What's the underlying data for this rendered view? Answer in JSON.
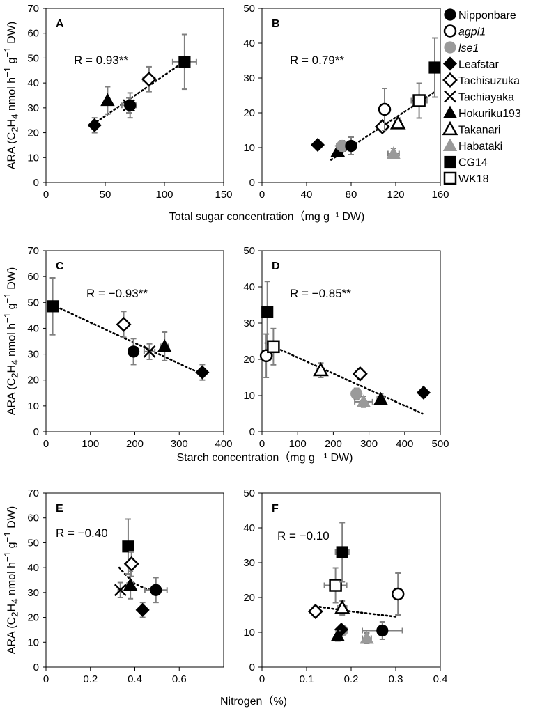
{
  "figure": {
    "y_axis_title": "ARA (C<sub>2</sub>H<sub>4</sub> nmol h<sup>−1</sup> g<sup>−1</sup> DW)",
    "row_titles": {
      "row1": "Total sugar concentration（mg g⁻¹ DW)",
      "row2": "Starch concentration（mg g ⁻¹ DW)",
      "row3": "Nitrogen（%)"
    }
  },
  "legend": [
    {
      "label": "Nipponbare",
      "marker": "circle-filled",
      "italic": false
    },
    {
      "label": "agpl1",
      "marker": "circle-open",
      "italic": true
    },
    {
      "label": "lse1",
      "marker": "circle-gray",
      "italic": true
    },
    {
      "label": "Leafstar",
      "marker": "diamond-filled",
      "italic": false
    },
    {
      "label": "Tachisuzuka",
      "marker": "diamond-open",
      "italic": false
    },
    {
      "label": "Tachiayaka",
      "marker": "cross",
      "italic": false
    },
    {
      "label": "Hokuriku193",
      "marker": "triangle-filled",
      "italic": false
    },
    {
      "label": "Takanari",
      "marker": "triangle-open",
      "italic": false
    },
    {
      "label": "Habataki",
      "marker": "triangle-gray",
      "italic": false
    },
    {
      "label": "CG14",
      "marker": "square-filled",
      "italic": false
    },
    {
      "label": "WK18",
      "marker": "square-open",
      "italic": false
    }
  ],
  "colors": {
    "black": "#000000",
    "gray": "#9a9a9a",
    "errorbar": "#808080"
  },
  "chart_data": [
    {
      "id": "A",
      "type": "scatter",
      "xlim": [
        0,
        150
      ],
      "xticks": [
        0,
        50,
        100,
        150
      ],
      "ylim": [
        0,
        70
      ],
      "yticks": [
        0,
        10,
        20,
        30,
        40,
        50,
        60,
        70
      ],
      "annotation": "R = 0.93**",
      "trendline": [
        [
          40,
          23.5
        ],
        [
          118,
          49
        ]
      ],
      "points": [
        {
          "m": "Leafstar",
          "x": 41,
          "y": 23,
          "xe": 0,
          "ye": 3
        },
        {
          "m": "Hokuriku193",
          "x": 52,
          "y": 33,
          "xe": 0,
          "ye": 5.5
        },
        {
          "m": "Tachiayaka",
          "x": 70,
          "y": 31,
          "xe": 6,
          "ye": 3
        },
        {
          "m": "Nipponbare",
          "x": 71,
          "y": 31,
          "xe": 4,
          "ye": 5
        },
        {
          "m": "Tachisuzuka",
          "x": 87,
          "y": 41.5,
          "xe": 5,
          "ye": 5
        },
        {
          "m": "CG14",
          "x": 117,
          "y": 48.5,
          "xe": 10,
          "ye": 11
        }
      ]
    },
    {
      "id": "B",
      "type": "scatter",
      "xlim": [
        0,
        160
      ],
      "xticks": [
        0,
        40,
        80,
        120,
        160
      ],
      "ylim": [
        0,
        50
      ],
      "yticks": [
        0,
        10,
        20,
        30,
        40,
        50
      ],
      "annotation": "R = 0.79**",
      "trendline": [
        [
          62,
          6.5
        ],
        [
          155,
          26
        ]
      ],
      "points": [
        {
          "m": "Leafstar",
          "x": 50,
          "y": 10.8,
          "xe": 0,
          "ye": 1
        },
        {
          "m": "Hokuriku193",
          "x": 68,
          "y": 9,
          "xe": 0,
          "ye": 1.5
        },
        {
          "m": "lse1",
          "x": 72,
          "y": 10.5,
          "xe": 5,
          "ye": 1.5
        },
        {
          "m": "Nipponbare",
          "x": 80,
          "y": 10.5,
          "xe": 5,
          "ye": 2.5
        },
        {
          "m": "Tachisuzuka",
          "x": 108,
          "y": 16,
          "xe": 4,
          "ye": 1.5
        },
        {
          "m": "agpl1",
          "x": 110,
          "y": 21,
          "xe": 0,
          "ye": 6
        },
        {
          "m": "Takanari",
          "x": 122,
          "y": 17,
          "xe": 3,
          "ye": 1.5
        },
        {
          "m": "Habataki",
          "x": 118,
          "y": 8.3,
          "xe": 5,
          "ye": 1.5
        },
        {
          "m": "WK18",
          "x": 141,
          "y": 23.5,
          "xe": 7,
          "ye": 5
        },
        {
          "m": "CG14",
          "x": 155,
          "y": 33,
          "xe": 0,
          "ye": 8.5
        }
      ]
    },
    {
      "id": "C",
      "type": "scatter",
      "xlim": [
        0,
        400
      ],
      "xticks": [
        0,
        100,
        200,
        300,
        400
      ],
      "ylim": [
        0,
        70
      ],
      "yticks": [
        0,
        10,
        20,
        30,
        40,
        50,
        60,
        70
      ],
      "annotation": "R = −0.93**",
      "trendline": [
        [
          15,
          49
        ],
        [
          355,
          22
        ]
      ],
      "points": [
        {
          "m": "CG14",
          "x": 15,
          "y": 48.5,
          "xe": 0,
          "ye": 11
        },
        {
          "m": "Tachisuzuka",
          "x": 175,
          "y": 41.5,
          "xe": 8,
          "ye": 5
        },
        {
          "m": "Nipponbare",
          "x": 197,
          "y": 31,
          "xe": 10,
          "ye": 5
        },
        {
          "m": "Tachiayaka",
          "x": 233,
          "y": 31,
          "xe": 12,
          "ye": 3
        },
        {
          "m": "Hokuriku193",
          "x": 267,
          "y": 33,
          "xe": 8,
          "ye": 5.5
        },
        {
          "m": "Leafstar",
          "x": 352,
          "y": 23,
          "xe": 8,
          "ye": 3
        }
      ]
    },
    {
      "id": "D",
      "type": "scatter",
      "xlim": [
        0,
        500
      ],
      "xticks": [
        0,
        100,
        200,
        300,
        400,
        500
      ],
      "ylim": [
        0,
        50
      ],
      "yticks": [
        0,
        10,
        20,
        30,
        40,
        50
      ],
      "annotation": "R = −0.85**",
      "trendline": [
        [
          10,
          24.5
        ],
        [
          450,
          5
        ]
      ],
      "points": [
        {
          "m": "CG14",
          "x": 15,
          "y": 33,
          "xe": 0,
          "ye": 8.5
        },
        {
          "m": "agpl1",
          "x": 12,
          "y": 21,
          "xe": 0,
          "ye": 6
        },
        {
          "m": "WK18",
          "x": 32,
          "y": 23.5,
          "xe": 12,
          "ye": 5
        },
        {
          "m": "Takanari",
          "x": 165,
          "y": 17,
          "xe": 10,
          "ye": 2
        },
        {
          "m": "lse1",
          "x": 265,
          "y": 10.5,
          "xe": 12,
          "ye": 1.5
        },
        {
          "m": "Tachisuzuka",
          "x": 275,
          "y": 16,
          "xe": 8,
          "ye": 1.5
        },
        {
          "m": "Habataki",
          "x": 285,
          "y": 8.3,
          "xe": 25,
          "ye": 1.5
        },
        {
          "m": "Hokuriku193",
          "x": 333,
          "y": 9,
          "xe": 10,
          "ye": 1.5
        },
        {
          "m": "Leafstar",
          "x": 453,
          "y": 10.8,
          "xe": 0,
          "ye": 1
        }
      ]
    },
    {
      "id": "E",
      "type": "scatter",
      "xlim": [
        0,
        0.8
      ],
      "xticks": [
        0,
        0.2,
        0.4,
        0.6
      ],
      "ylim": [
        0,
        70
      ],
      "yticks": [
        0,
        10,
        20,
        30,
        40,
        50,
        60,
        70
      ],
      "annotation": "R = −0.40",
      "trendline": [
        [
          0.33,
          40
        ],
        [
          0.36,
          37
        ],
        [
          0.4,
          33.5
        ],
        [
          0.45,
          31.5
        ],
        [
          0.5,
          30.5
        ]
      ],
      "points": [
        {
          "m": "Tachiayaka",
          "x": 0.335,
          "y": 31,
          "xe": 0.01,
          "ye": 3
        },
        {
          "m": "CG14",
          "x": 0.37,
          "y": 48.5,
          "xe": 0,
          "ye": 11
        },
        {
          "m": "Tachisuzuka",
          "x": 0.385,
          "y": 41.5,
          "xe": 0.015,
          "ye": 5
        },
        {
          "m": "Hokuriku193",
          "x": 0.38,
          "y": 33,
          "xe": 0.015,
          "ye": 5.5
        },
        {
          "m": "Leafstar",
          "x": 0.435,
          "y": 23,
          "xe": 0,
          "ye": 3
        },
        {
          "m": "Nipponbare",
          "x": 0.495,
          "y": 31,
          "xe": 0.05,
          "ye": 5
        }
      ]
    },
    {
      "id": "F",
      "type": "scatter",
      "xlim": [
        0,
        0.4
      ],
      "xticks": [
        0,
        0.1,
        0.2,
        0.3,
        0.4
      ],
      "ylim": [
        0,
        50
      ],
      "yticks": [
        0,
        10,
        20,
        30,
        40,
        50
      ],
      "annotation": "R = −0.10",
      "trendline": [
        [
          0.12,
          17.5
        ],
        [
          0.2,
          16
        ],
        [
          0.3,
          14.5
        ]
      ],
      "points": [
        {
          "m": "Tachisuzuka",
          "x": 0.12,
          "y": 16,
          "xe": 0.01,
          "ye": 1.5
        },
        {
          "m": "WK18",
          "x": 0.165,
          "y": 23.5,
          "xe": 0.025,
          "ye": 5
        },
        {
          "m": "CG14",
          "x": 0.18,
          "y": 33,
          "xe": 0.015,
          "ye": 8.5
        },
        {
          "m": "Takanari",
          "x": 0.18,
          "y": 17,
          "xe": 0.01,
          "ye": 2
        },
        {
          "m": "lse1",
          "x": 0.18,
          "y": 10.5,
          "xe": 0.01,
          "ye": 1.5
        },
        {
          "m": "Leafstar",
          "x": 0.178,
          "y": 10.8,
          "xe": 0,
          "ye": 1
        },
        {
          "m": "Hokuriku193",
          "x": 0.17,
          "y": 9,
          "xe": 0,
          "ye": 1.5
        },
        {
          "m": "Habataki",
          "x": 0.235,
          "y": 8.3,
          "xe": 0.01,
          "ye": 1.5
        },
        {
          "m": "Nipponbare",
          "x": 0.27,
          "y": 10.5,
          "xe": 0.045,
          "ye": 2.5
        },
        {
          "m": "agpl1",
          "x": 0.305,
          "y": 21,
          "xe": 0,
          "ye": 6
        }
      ]
    }
  ]
}
